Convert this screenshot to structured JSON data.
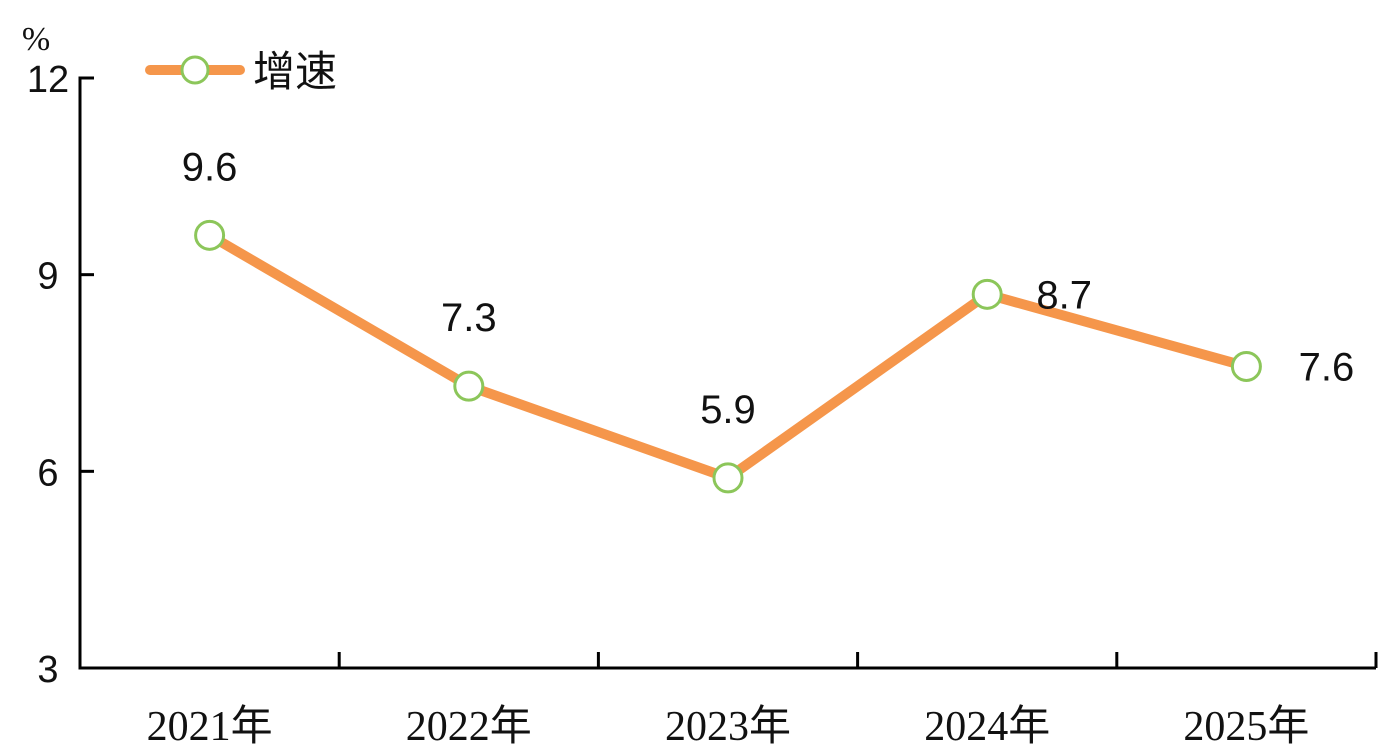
{
  "chart_data": {
    "type": "line",
    "categories": [
      "2021年",
      "2022年",
      "2023年",
      "2024年",
      "2025年"
    ],
    "series": [
      {
        "name": "增速",
        "values": [
          9.6,
          7.3,
          5.9,
          8.7,
          7.6
        ]
      }
    ],
    "data_labels": [
      "9.6",
      "7.3",
      "5.9",
      "8.7",
      "7.6"
    ],
    "ylabel": "%",
    "ylim": [
      3,
      12
    ],
    "yticks": [
      3,
      6,
      9,
      12
    ],
    "ytick_labels": [
      "3",
      "6",
      "9",
      "12"
    ],
    "grid": false,
    "legend": {
      "position": "top-left"
    },
    "colors": {
      "line": "#f5964b",
      "marker_stroke": "#8cc65a",
      "marker_fill": "#ffffff",
      "axis": "#000000",
      "text": "#111111"
    }
  }
}
